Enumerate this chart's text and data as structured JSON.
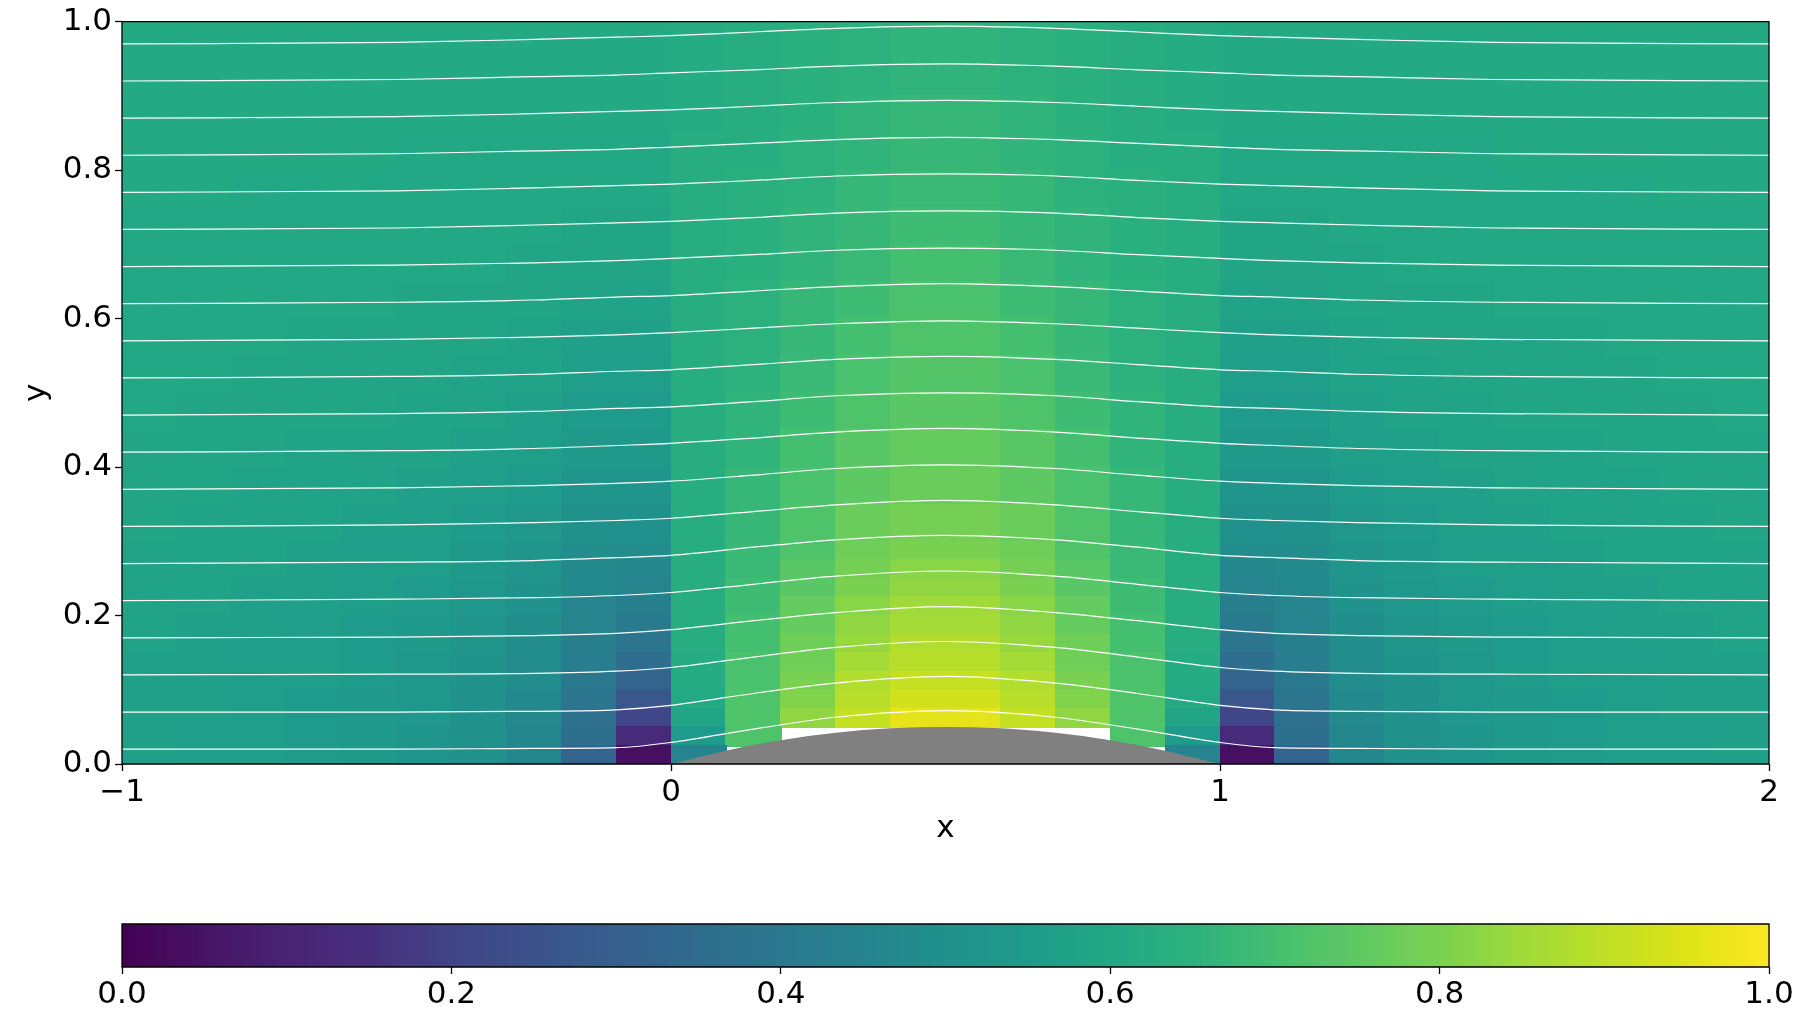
{
  "chart_data": {
    "type": "heatmap",
    "xlabel": "x",
    "ylabel": "y",
    "xlim": [
      -1,
      2
    ],
    "ylim": [
      0,
      1
    ],
    "xticks": [
      {
        "value": -1,
        "label": "−1"
      },
      0,
      1,
      2
    ],
    "yticks": [
      {
        "value": 0,
        "label": "0.0"
      },
      0.2,
      0.4,
      0.6,
      0.8,
      {
        "value": 1,
        "label": "1.0"
      }
    ],
    "clim": [
      0,
      1
    ],
    "cticks": [
      {
        "value": 0,
        "label": "0.0"
      },
      0.2,
      0.4,
      0.6,
      0.8,
      {
        "value": 1,
        "label": "1.0"
      }
    ],
    "cells": [
      [
        0.61,
        0.61,
        0.61,
        0.61,
        0.61,
        0.61,
        0.61,
        0.61,
        0.61,
        0.61,
        0.62,
        0.63,
        0.64,
        0.65,
        0.66,
        0.66,
        0.65,
        0.64,
        0.63,
        0.62,
        0.61,
        0.61,
        0.61,
        0.61,
        0.61,
        0.61,
        0.61,
        0.61,
        0.61,
        0.61
      ],
      [
        0.61,
        0.61,
        0.61,
        0.61,
        0.61,
        0.61,
        0.61,
        0.61,
        0.61,
        0.61,
        0.62,
        0.63,
        0.64,
        0.65,
        0.66,
        0.66,
        0.65,
        0.64,
        0.63,
        0.62,
        0.61,
        0.61,
        0.61,
        0.61,
        0.61,
        0.61,
        0.61,
        0.61,
        0.61,
        0.61
      ],
      [
        0.61,
        0.61,
        0.61,
        0.61,
        0.61,
        0.61,
        0.61,
        0.61,
        0.61,
        0.61,
        0.62,
        0.63,
        0.64,
        0.65,
        0.66,
        0.66,
        0.65,
        0.64,
        0.63,
        0.62,
        0.61,
        0.61,
        0.61,
        0.61,
        0.61,
        0.61,
        0.61,
        0.61,
        0.61,
        0.61
      ],
      [
        0.61,
        0.61,
        0.61,
        0.61,
        0.61,
        0.61,
        0.61,
        0.61,
        0.61,
        0.61,
        0.62,
        0.63,
        0.64,
        0.65,
        0.66,
        0.66,
        0.65,
        0.64,
        0.63,
        0.62,
        0.61,
        0.61,
        0.61,
        0.61,
        0.61,
        0.61,
        0.61,
        0.61,
        0.61,
        0.61
      ],
      [
        0.61,
        0.61,
        0.61,
        0.61,
        0.61,
        0.61,
        0.61,
        0.61,
        0.61,
        0.61,
        0.62,
        0.63,
        0.64,
        0.66,
        0.67,
        0.67,
        0.66,
        0.64,
        0.63,
        0.62,
        0.61,
        0.61,
        0.61,
        0.61,
        0.61,
        0.61,
        0.61,
        0.61,
        0.61,
        0.61
      ],
      [
        0.61,
        0.61,
        0.61,
        0.61,
        0.61,
        0.61,
        0.61,
        0.61,
        0.61,
        0.61,
        0.62,
        0.63,
        0.64,
        0.66,
        0.67,
        0.67,
        0.66,
        0.64,
        0.63,
        0.62,
        0.61,
        0.61,
        0.61,
        0.61,
        0.61,
        0.61,
        0.61,
        0.61,
        0.61,
        0.61
      ],
      [
        0.61,
        0.61,
        0.61,
        0.61,
        0.61,
        0.6,
        0.6,
        0.6,
        0.6,
        0.6,
        0.63,
        0.63,
        0.65,
        0.66,
        0.67,
        0.67,
        0.66,
        0.65,
        0.63,
        0.63,
        0.6,
        0.6,
        0.6,
        0.6,
        0.6,
        0.61,
        0.61,
        0.61,
        0.61,
        0.61
      ],
      [
        0.61,
        0.61,
        0.61,
        0.61,
        0.61,
        0.6,
        0.6,
        0.6,
        0.6,
        0.6,
        0.63,
        0.63,
        0.65,
        0.66,
        0.67,
        0.67,
        0.66,
        0.65,
        0.63,
        0.63,
        0.6,
        0.6,
        0.6,
        0.6,
        0.6,
        0.61,
        0.61,
        0.61,
        0.61,
        0.61
      ],
      [
        0.61,
        0.61,
        0.6,
        0.6,
        0.6,
        0.6,
        0.6,
        0.6,
        0.6,
        0.6,
        0.63,
        0.64,
        0.65,
        0.67,
        0.68,
        0.68,
        0.67,
        0.65,
        0.64,
        0.63,
        0.6,
        0.6,
        0.6,
        0.6,
        0.6,
        0.6,
        0.6,
        0.6,
        0.61,
        0.61
      ],
      [
        0.61,
        0.61,
        0.6,
        0.6,
        0.6,
        0.6,
        0.6,
        0.6,
        0.6,
        0.6,
        0.63,
        0.64,
        0.65,
        0.67,
        0.68,
        0.68,
        0.67,
        0.65,
        0.64,
        0.63,
        0.6,
        0.6,
        0.6,
        0.6,
        0.6,
        0.6,
        0.6,
        0.6,
        0.61,
        0.61
      ],
      [
        0.6,
        0.6,
        0.6,
        0.6,
        0.6,
        0.6,
        0.6,
        0.6,
        0.59,
        0.59,
        0.63,
        0.64,
        0.66,
        0.67,
        0.69,
        0.69,
        0.67,
        0.66,
        0.64,
        0.63,
        0.59,
        0.59,
        0.6,
        0.6,
        0.6,
        0.6,
        0.6,
        0.6,
        0.6,
        0.6
      ],
      [
        0.6,
        0.6,
        0.6,
        0.6,
        0.6,
        0.6,
        0.6,
        0.6,
        0.59,
        0.59,
        0.63,
        0.64,
        0.66,
        0.67,
        0.69,
        0.69,
        0.67,
        0.66,
        0.64,
        0.63,
        0.59,
        0.59,
        0.6,
        0.6,
        0.6,
        0.6,
        0.6,
        0.6,
        0.6,
        0.6
      ],
      [
        0.6,
        0.6,
        0.6,
        0.6,
        0.6,
        0.6,
        0.6,
        0.59,
        0.59,
        0.59,
        0.63,
        0.64,
        0.66,
        0.68,
        0.7,
        0.7,
        0.68,
        0.66,
        0.64,
        0.63,
        0.59,
        0.59,
        0.59,
        0.6,
        0.6,
        0.6,
        0.6,
        0.6,
        0.6,
        0.6
      ],
      [
        0.6,
        0.6,
        0.6,
        0.6,
        0.6,
        0.6,
        0.6,
        0.59,
        0.59,
        0.59,
        0.63,
        0.64,
        0.66,
        0.68,
        0.7,
        0.7,
        0.68,
        0.66,
        0.64,
        0.63,
        0.59,
        0.59,
        0.59,
        0.6,
        0.6,
        0.6,
        0.6,
        0.6,
        0.6,
        0.6
      ],
      [
        0.6,
        0.6,
        0.6,
        0.6,
        0.6,
        0.59,
        0.59,
        0.59,
        0.58,
        0.58,
        0.63,
        0.65,
        0.67,
        0.69,
        0.71,
        0.71,
        0.69,
        0.67,
        0.65,
        0.63,
        0.58,
        0.58,
        0.59,
        0.59,
        0.59,
        0.6,
        0.6,
        0.6,
        0.6,
        0.6
      ],
      [
        0.6,
        0.6,
        0.6,
        0.6,
        0.6,
        0.59,
        0.59,
        0.59,
        0.58,
        0.58,
        0.63,
        0.65,
        0.67,
        0.69,
        0.71,
        0.71,
        0.69,
        0.67,
        0.65,
        0.63,
        0.58,
        0.58,
        0.59,
        0.59,
        0.59,
        0.6,
        0.6,
        0.6,
        0.6,
        0.6
      ],
      [
        0.6,
        0.6,
        0.6,
        0.59,
        0.59,
        0.59,
        0.59,
        0.58,
        0.57,
        0.57,
        0.63,
        0.65,
        0.67,
        0.7,
        0.72,
        0.72,
        0.7,
        0.67,
        0.65,
        0.63,
        0.57,
        0.57,
        0.58,
        0.59,
        0.59,
        0.59,
        0.59,
        0.6,
        0.6,
        0.6
      ],
      [
        0.6,
        0.6,
        0.6,
        0.59,
        0.59,
        0.59,
        0.59,
        0.58,
        0.57,
        0.57,
        0.63,
        0.65,
        0.67,
        0.7,
        0.72,
        0.72,
        0.7,
        0.67,
        0.65,
        0.63,
        0.57,
        0.57,
        0.58,
        0.59,
        0.59,
        0.59,
        0.59,
        0.6,
        0.6,
        0.6
      ],
      [
        0.6,
        0.6,
        0.59,
        0.59,
        0.59,
        0.59,
        0.58,
        0.58,
        0.56,
        0.56,
        0.63,
        0.65,
        0.68,
        0.71,
        0.73,
        0.73,
        0.71,
        0.68,
        0.65,
        0.63,
        0.56,
        0.56,
        0.58,
        0.58,
        0.59,
        0.59,
        0.59,
        0.59,
        0.6,
        0.6
      ],
      [
        0.6,
        0.6,
        0.59,
        0.59,
        0.59,
        0.59,
        0.58,
        0.58,
        0.56,
        0.56,
        0.63,
        0.65,
        0.68,
        0.71,
        0.73,
        0.73,
        0.71,
        0.68,
        0.65,
        0.63,
        0.56,
        0.56,
        0.58,
        0.58,
        0.59,
        0.59,
        0.59,
        0.59,
        0.6,
        0.6
      ],
      [
        0.6,
        0.59,
        0.59,
        0.59,
        0.59,
        0.58,
        0.58,
        0.57,
        0.55,
        0.55,
        0.63,
        0.66,
        0.69,
        0.72,
        0.74,
        0.74,
        0.72,
        0.69,
        0.66,
        0.63,
        0.55,
        0.55,
        0.57,
        0.58,
        0.58,
        0.59,
        0.59,
        0.59,
        0.59,
        0.6
      ],
      [
        0.6,
        0.59,
        0.59,
        0.59,
        0.59,
        0.58,
        0.58,
        0.57,
        0.55,
        0.55,
        0.63,
        0.66,
        0.69,
        0.72,
        0.74,
        0.74,
        0.72,
        0.69,
        0.66,
        0.63,
        0.55,
        0.55,
        0.57,
        0.58,
        0.58,
        0.59,
        0.59,
        0.59,
        0.59,
        0.6
      ],
      [
        0.59,
        0.59,
        0.59,
        0.58,
        0.58,
        0.58,
        0.57,
        0.56,
        0.54,
        0.54,
        0.63,
        0.66,
        0.7,
        0.74,
        0.76,
        0.76,
        0.74,
        0.7,
        0.66,
        0.63,
        0.54,
        0.54,
        0.56,
        0.57,
        0.58,
        0.58,
        0.58,
        0.59,
        0.59,
        0.59
      ],
      [
        0.59,
        0.59,
        0.59,
        0.58,
        0.58,
        0.58,
        0.57,
        0.56,
        0.54,
        0.54,
        0.63,
        0.66,
        0.7,
        0.74,
        0.76,
        0.76,
        0.74,
        0.7,
        0.66,
        0.63,
        0.54,
        0.54,
        0.56,
        0.57,
        0.58,
        0.58,
        0.58,
        0.59,
        0.59,
        0.59
      ],
      [
        0.59,
        0.59,
        0.58,
        0.58,
        0.58,
        0.57,
        0.56,
        0.55,
        0.52,
        0.52,
        0.63,
        0.67,
        0.71,
        0.75,
        0.77,
        0.77,
        0.75,
        0.71,
        0.67,
        0.63,
        0.52,
        0.52,
        0.55,
        0.56,
        0.57,
        0.58,
        0.58,
        0.58,
        0.59,
        0.59
      ],
      [
        0.59,
        0.59,
        0.58,
        0.58,
        0.58,
        0.57,
        0.56,
        0.55,
        0.52,
        0.52,
        0.63,
        0.67,
        0.71,
        0.75,
        0.77,
        0.77,
        0.75,
        0.71,
        0.67,
        0.63,
        0.52,
        0.52,
        0.55,
        0.56,
        0.57,
        0.58,
        0.58,
        0.58,
        0.59,
        0.59
      ],
      [
        0.59,
        0.58,
        0.58,
        0.58,
        0.57,
        0.56,
        0.55,
        0.53,
        0.5,
        0.5,
        0.63,
        0.67,
        0.72,
        0.77,
        0.79,
        0.79,
        0.77,
        0.72,
        0.67,
        0.63,
        0.5,
        0.5,
        0.53,
        0.55,
        0.56,
        0.57,
        0.58,
        0.58,
        0.58,
        0.59
      ],
      [
        0.59,
        0.58,
        0.58,
        0.58,
        0.57,
        0.56,
        0.55,
        0.53,
        0.5,
        0.5,
        0.63,
        0.67,
        0.72,
        0.77,
        0.79,
        0.79,
        0.77,
        0.72,
        0.67,
        0.63,
        0.5,
        0.5,
        0.53,
        0.55,
        0.56,
        0.57,
        0.58,
        0.58,
        0.58,
        0.59
      ],
      [
        0.58,
        0.58,
        0.58,
        0.57,
        0.56,
        0.56,
        0.54,
        0.52,
        0.49,
        0.48,
        0.63,
        0.68,
        0.72,
        0.78,
        0.8,
        0.8,
        0.78,
        0.72,
        0.68,
        0.63,
        0.48,
        0.49,
        0.52,
        0.54,
        0.56,
        0.56,
        0.57,
        0.58,
        0.58,
        0.58
      ],
      [
        0.58,
        0.58,
        0.58,
        0.57,
        0.56,
        0.56,
        0.54,
        0.52,
        0.47,
        0.46,
        0.63,
        0.68,
        0.74,
        0.79,
        0.82,
        0.82,
        0.79,
        0.74,
        0.68,
        0.63,
        0.46,
        0.47,
        0.52,
        0.54,
        0.56,
        0.56,
        0.57,
        0.58,
        0.58,
        0.58
      ],
      [
        0.58,
        0.58,
        0.57,
        0.57,
        0.56,
        0.55,
        0.53,
        0.51,
        0.47,
        0.45,
        0.63,
        0.69,
        0.74,
        0.8,
        0.83,
        0.83,
        0.8,
        0.74,
        0.69,
        0.63,
        0.45,
        0.47,
        0.51,
        0.53,
        0.55,
        0.56,
        0.57,
        0.57,
        0.58,
        0.58
      ],
      [
        0.58,
        0.58,
        0.57,
        0.57,
        0.56,
        0.55,
        0.53,
        0.51,
        0.45,
        0.43,
        0.63,
        0.69,
        0.76,
        0.82,
        0.85,
        0.85,
        0.82,
        0.76,
        0.69,
        0.63,
        0.43,
        0.45,
        0.51,
        0.53,
        0.55,
        0.56,
        0.57,
        0.57,
        0.58,
        0.58
      ],
      [
        0.58,
        0.57,
        0.57,
        0.56,
        0.55,
        0.54,
        0.52,
        0.49,
        0.45,
        0.41,
        0.63,
        0.7,
        0.76,
        0.83,
        0.86,
        0.86,
        0.83,
        0.76,
        0.7,
        0.63,
        0.41,
        0.45,
        0.49,
        0.52,
        0.54,
        0.55,
        0.56,
        0.57,
        0.57,
        0.58
      ],
      [
        0.58,
        0.57,
        0.57,
        0.56,
        0.55,
        0.54,
        0.52,
        0.49,
        0.43,
        0.39,
        0.63,
        0.7,
        0.78,
        0.84,
        0.88,
        0.88,
        0.84,
        0.78,
        0.7,
        0.63,
        0.39,
        0.43,
        0.49,
        0.52,
        0.54,
        0.55,
        0.56,
        0.57,
        0.57,
        0.58
      ],
      [
        0.57,
        0.57,
        0.56,
        0.56,
        0.55,
        0.53,
        0.51,
        0.48,
        0.42,
        0.36,
        0.62,
        0.71,
        0.78,
        0.86,
        0.89,
        0.89,
        0.86,
        0.78,
        0.71,
        0.62,
        0.36,
        0.42,
        0.48,
        0.51,
        0.53,
        0.55,
        0.56,
        0.56,
        0.57,
        0.57
      ],
      [
        0.57,
        0.57,
        0.56,
        0.56,
        0.55,
        0.53,
        0.51,
        0.48,
        0.4,
        0.32,
        0.62,
        0.71,
        0.8,
        0.88,
        0.91,
        0.91,
        0.88,
        0.8,
        0.71,
        0.62,
        0.32,
        0.4,
        0.48,
        0.51,
        0.53,
        0.55,
        0.56,
        0.56,
        0.57,
        0.57
      ],
      [
        0.57,
        0.57,
        0.56,
        0.55,
        0.54,
        0.53,
        0.5,
        0.47,
        0.39,
        0.27,
        0.61,
        0.72,
        0.81,
        0.89,
        0.93,
        0.93,
        0.89,
        0.81,
        0.72,
        0.61,
        0.27,
        0.39,
        0.47,
        0.5,
        0.53,
        0.54,
        0.55,
        0.56,
        0.57,
        0.57
      ],
      [
        0.57,
        0.57,
        0.56,
        0.55,
        0.54,
        0.53,
        0.5,
        0.47,
        0.37,
        0.21,
        0.59,
        0.72,
        0.83,
        0.91,
        0.96,
        0.96,
        0.91,
        0.83,
        0.72,
        0.59,
        0.21,
        0.37,
        0.47,
        0.5,
        0.53,
        0.54,
        0.55,
        0.56,
        0.57,
        0.57
      ],
      [
        0.57,
        0.56,
        0.56,
        0.55,
        0.54,
        0.52,
        0.5,
        0.46,
        0.36,
        0.13,
        0.55,
        0.72,
        null,
        null,
        null,
        null,
        null,
        null,
        0.72,
        0.55,
        0.13,
        0.36,
        0.46,
        0.5,
        0.52,
        0.54,
        0.55,
        0.56,
        0.56,
        0.57
      ],
      [
        0.57,
        0.56,
        0.56,
        0.55,
        0.54,
        0.52,
        0.5,
        0.46,
        0.32,
        0.04,
        0.45,
        null,
        null,
        null,
        null,
        null,
        null,
        null,
        null,
        0.45,
        0.04,
        0.32,
        0.46,
        0.5,
        0.52,
        0.54,
        0.55,
        0.56,
        0.56,
        0.57
      ]
    ],
    "series": [
      {
        "type": "line",
        "color": "#ffffff",
        "x": [
          -1,
          -0.5,
          -0.25,
          -0.1,
          0,
          0.15,
          0.3,
          0.5,
          0.7,
          0.85,
          1,
          1.1,
          1.25,
          1.5,
          2
        ],
        "values": [
          0.02,
          0.02,
          0.021,
          0.022,
          0.029,
          0.047,
          0.063,
          0.072,
          0.063,
          0.047,
          0.029,
          0.022,
          0.021,
          0.02,
          0.02
        ]
      },
      {
        "type": "line",
        "color": "#ffffff",
        "x": [
          -1,
          -0.5,
          -0.25,
          -0.1,
          0,
          0.15,
          0.3,
          0.5,
          0.7,
          0.85,
          1,
          1.1,
          1.25,
          1.5,
          2
        ],
        "values": [
          0.07,
          0.07,
          0.071,
          0.073,
          0.079,
          0.095,
          0.109,
          0.118,
          0.109,
          0.095,
          0.079,
          0.073,
          0.071,
          0.07,
          0.07
        ]
      },
      {
        "type": "line",
        "color": "#ffffff",
        "x": [
          -1,
          -0.5,
          -0.25,
          -0.1,
          0,
          0.15,
          0.3,
          0.5,
          0.7,
          0.85,
          1,
          1.1,
          1.25,
          1.5,
          2
        ],
        "values": [
          0.12,
          0.121,
          0.122,
          0.125,
          0.13,
          0.144,
          0.157,
          0.165,
          0.157,
          0.144,
          0.13,
          0.125,
          0.122,
          0.121,
          0.12
        ]
      },
      {
        "type": "line",
        "color": "#ffffff",
        "x": [
          -1,
          -0.5,
          -0.25,
          -0.1,
          0,
          0.15,
          0.3,
          0.5,
          0.7,
          0.85,
          1,
          1.1,
          1.25,
          1.5,
          2
        ],
        "values": [
          0.17,
          0.171,
          0.173,
          0.176,
          0.181,
          0.193,
          0.204,
          0.212,
          0.204,
          0.193,
          0.181,
          0.176,
          0.173,
          0.171,
          0.17
        ]
      },
      {
        "type": "line",
        "color": "#ffffff",
        "x": [
          -1,
          -0.5,
          -0.25,
          -0.1,
          0,
          0.15,
          0.3,
          0.5,
          0.7,
          0.85,
          1,
          1.1,
          1.25,
          1.5,
          2
        ],
        "values": [
          0.22,
          0.222,
          0.224,
          0.227,
          0.231,
          0.242,
          0.253,
          0.26,
          0.253,
          0.242,
          0.231,
          0.227,
          0.224,
          0.222,
          0.22
        ]
      },
      {
        "type": "line",
        "color": "#ffffff",
        "x": [
          -1,
          -0.5,
          -0.25,
          -0.1,
          0,
          0.15,
          0.3,
          0.5,
          0.7,
          0.85,
          1,
          1.1,
          1.25,
          1.5,
          2
        ],
        "values": [
          0.27,
          0.272,
          0.274,
          0.278,
          0.281,
          0.292,
          0.302,
          0.308,
          0.302,
          0.292,
          0.281,
          0.278,
          0.274,
          0.272,
          0.27
        ]
      },
      {
        "type": "line",
        "color": "#ffffff",
        "x": [
          -1,
          -0.5,
          -0.25,
          -0.1,
          0,
          0.15,
          0.3,
          0.5,
          0.7,
          0.85,
          1,
          1.1,
          1.25,
          1.5,
          2
        ],
        "values": [
          0.32,
          0.322,
          0.325,
          0.328,
          0.331,
          0.34,
          0.349,
          0.355,
          0.349,
          0.34,
          0.331,
          0.328,
          0.325,
          0.322,
          0.32
        ]
      },
      {
        "type": "line",
        "color": "#ffffff",
        "x": [
          -1,
          -0.5,
          -0.25,
          -0.1,
          0,
          0.15,
          0.3,
          0.5,
          0.7,
          0.85,
          1,
          1.1,
          1.25,
          1.5,
          2
        ],
        "values": [
          0.37,
          0.372,
          0.375,
          0.378,
          0.381,
          0.389,
          0.398,
          0.403,
          0.398,
          0.389,
          0.381,
          0.378,
          0.375,
          0.372,
          0.37
        ]
      },
      {
        "type": "line",
        "color": "#ffffff",
        "x": [
          -1,
          -0.5,
          -0.25,
          -0.1,
          0,
          0.15,
          0.3,
          0.5,
          0.7,
          0.85,
          1,
          1.1,
          1.25,
          1.5,
          2
        ],
        "values": [
          0.42,
          0.422,
          0.425,
          0.429,
          0.432,
          0.439,
          0.447,
          0.452,
          0.447,
          0.439,
          0.432,
          0.429,
          0.425,
          0.422,
          0.42
        ]
      },
      {
        "type": "line",
        "color": "#ffffff",
        "x": [
          -1,
          -0.5,
          -0.25,
          -0.1,
          0,
          0.15,
          0.3,
          0.5,
          0.7,
          0.85,
          1,
          1.1,
          1.25,
          1.5,
          2
        ],
        "values": [
          0.47,
          0.472,
          0.475,
          0.479,
          0.481,
          0.488,
          0.496,
          0.5,
          0.496,
          0.488,
          0.481,
          0.479,
          0.475,
          0.472,
          0.47
        ]
      },
      {
        "type": "line",
        "color": "#ffffff",
        "x": [
          -1,
          -0.5,
          -0.25,
          -0.1,
          0,
          0.15,
          0.3,
          0.5,
          0.7,
          0.85,
          1,
          1.1,
          1.25,
          1.5,
          2
        ],
        "values": [
          0.52,
          0.522,
          0.525,
          0.529,
          0.531,
          0.538,
          0.545,
          0.549,
          0.545,
          0.538,
          0.531,
          0.529,
          0.525,
          0.522,
          0.52
        ]
      },
      {
        "type": "line",
        "color": "#ffffff",
        "x": [
          -1,
          -0.5,
          -0.25,
          -0.1,
          0,
          0.15,
          0.3,
          0.5,
          0.7,
          0.85,
          1,
          1.1,
          1.25,
          1.5,
          2
        ],
        "values": [
          0.57,
          0.572,
          0.575,
          0.578,
          0.581,
          0.587,
          0.593,
          0.597,
          0.593,
          0.587,
          0.581,
          0.578,
          0.575,
          0.572,
          0.57
        ]
      },
      {
        "type": "line",
        "color": "#ffffff",
        "x": [
          -1,
          -0.5,
          -0.25,
          -0.1,
          0,
          0.15,
          0.3,
          0.5,
          0.7,
          0.85,
          1,
          1.1,
          1.25,
          1.5,
          2
        ],
        "values": [
          0.62,
          0.622,
          0.625,
          0.629,
          0.631,
          0.637,
          0.643,
          0.647,
          0.643,
          0.637,
          0.631,
          0.629,
          0.625,
          0.622,
          0.62
        ]
      },
      {
        "type": "line",
        "color": "#ffffff",
        "x": [
          -1,
          -0.5,
          -0.25,
          -0.1,
          0,
          0.15,
          0.3,
          0.5,
          0.7,
          0.85,
          1,
          1.1,
          1.25,
          1.5,
          2
        ],
        "values": [
          0.67,
          0.672,
          0.675,
          0.678,
          0.681,
          0.686,
          0.692,
          0.695,
          0.692,
          0.686,
          0.681,
          0.678,
          0.675,
          0.672,
          0.67
        ]
      },
      {
        "type": "line",
        "color": "#ffffff",
        "x": [
          -1,
          -0.5,
          -0.25,
          -0.1,
          0,
          0.15,
          0.3,
          0.5,
          0.7,
          0.85,
          1,
          1.1,
          1.25,
          1.5,
          2
        ],
        "values": [
          0.72,
          0.722,
          0.726,
          0.729,
          0.731,
          0.736,
          0.742,
          0.745,
          0.742,
          0.736,
          0.731,
          0.729,
          0.726,
          0.722,
          0.72
        ]
      },
      {
        "type": "line",
        "color": "#ffffff",
        "x": [
          -1,
          -0.5,
          -0.25,
          -0.1,
          0,
          0.15,
          0.3,
          0.5,
          0.7,
          0.85,
          1,
          1.1,
          1.25,
          1.5,
          2
        ],
        "values": [
          0.77,
          0.772,
          0.776,
          0.779,
          0.781,
          0.786,
          0.792,
          0.795,
          0.792,
          0.786,
          0.781,
          0.779,
          0.776,
          0.772,
          0.77
        ]
      },
      {
        "type": "line",
        "color": "#ffffff",
        "x": [
          -1,
          -0.5,
          -0.25,
          -0.1,
          0,
          0.15,
          0.3,
          0.5,
          0.7,
          0.85,
          1,
          1.1,
          1.25,
          1.5,
          2
        ],
        "values": [
          0.82,
          0.822,
          0.826,
          0.828,
          0.831,
          0.836,
          0.841,
          0.844,
          0.841,
          0.836,
          0.831,
          0.828,
          0.826,
          0.822,
          0.82
        ]
      },
      {
        "type": "line",
        "color": "#ffffff",
        "x": [
          -1,
          -0.5,
          -0.25,
          -0.1,
          0,
          0.15,
          0.3,
          0.5,
          0.7,
          0.85,
          1,
          1.1,
          1.25,
          1.5,
          2
        ],
        "values": [
          0.87,
          0.872,
          0.876,
          0.879,
          0.881,
          0.886,
          0.891,
          0.894,
          0.891,
          0.886,
          0.881,
          0.879,
          0.876,
          0.872,
          0.87
        ]
      },
      {
        "type": "line",
        "color": "#ffffff",
        "x": [
          -1,
          -0.5,
          -0.25,
          -0.1,
          0,
          0.15,
          0.3,
          0.5,
          0.7,
          0.85,
          1,
          1.1,
          1.25,
          1.5,
          2
        ],
        "values": [
          0.92,
          0.922,
          0.926,
          0.928,
          0.931,
          0.935,
          0.94,
          0.943,
          0.94,
          0.935,
          0.931,
          0.928,
          0.926,
          0.922,
          0.92
        ]
      },
      {
        "type": "line",
        "color": "#ffffff",
        "x": [
          -1,
          -0.5,
          -0.25,
          -0.1,
          0,
          0.15,
          0.3,
          0.5,
          0.7,
          0.85,
          1,
          1.1,
          1.25,
          1.5,
          2
        ],
        "values": [
          0.97,
          0.972,
          0.976,
          0.979,
          0.981,
          0.986,
          0.991,
          0.994,
          0.991,
          0.986,
          0.981,
          0.979,
          0.976,
          0.972,
          0.97
        ]
      },
      {
        "type": "area",
        "color": "#808080",
        "x": [
          0,
          0.1,
          0.2,
          0.3,
          0.4,
          0.5,
          0.6,
          0.7,
          0.8,
          0.9,
          1
        ],
        "values": [
          0,
          0.018,
          0.032,
          0.042,
          0.048,
          0.05,
          0.048,
          0.042,
          0.032,
          0.018,
          0
        ]
      }
    ]
  }
}
